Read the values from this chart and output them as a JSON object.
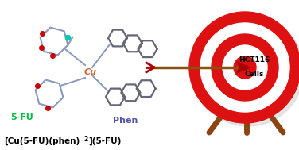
{
  "bg_color": "#ffffff",
  "cu_color": "#d2691e",
  "label_cu": "Cu",
  "label_5fu": "5-FU",
  "label_phen": "Phen",
  "label_hct116": "HCT116",
  "label_cells": "Cells",
  "label_5fu_color": "#00bb44",
  "label_phen_color": "#5555aa",
  "label_cu_color": "#cc6633",
  "ring_gray": "#666677",
  "ring_blue": "#8899bb",
  "red_atom": "#cc0000",
  "green_atom": "#00ccaa",
  "arrow_shaft": "#8B5010",
  "arrow_head": "#aa0000",
  "target_red": "#dd1111",
  "leg_color": "#8B4513",
  "title_color": "#000000",
  "bottom_text": "[Cu(5-FU)(phen)",
  "bottom_sub": "2",
  "bottom_end": "](5-FU)"
}
